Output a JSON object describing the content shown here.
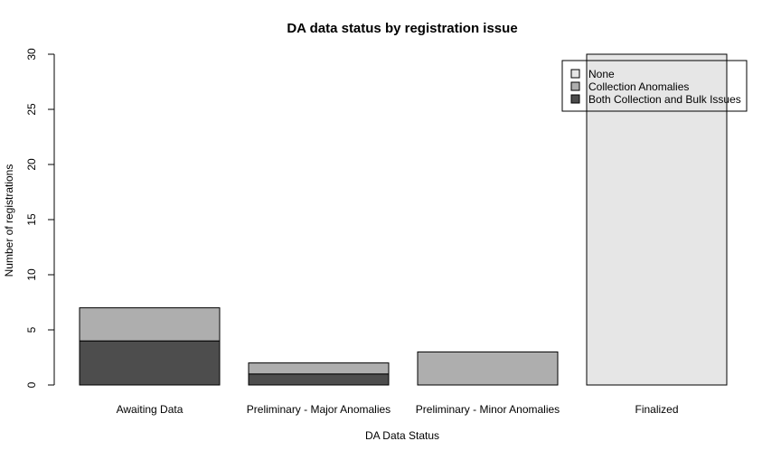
{
  "chart_data": {
    "type": "bar",
    "stacked": true,
    "title": "DA data status by registration issue",
    "xlabel": "DA Data Status",
    "ylabel": "Number of registrations",
    "categories": [
      "Awaiting Data",
      "Preliminary - Major Anomalies",
      "Preliminary - Minor Anomalies",
      "Finalized"
    ],
    "series": [
      {
        "name": "Both Collection and Bulk Issues",
        "color": "#4d4d4d",
        "values": [
          4,
          1,
          0,
          0
        ]
      },
      {
        "name": "Collection Anomalies",
        "color": "#aeaeae",
        "values": [
          3,
          1,
          3,
          0
        ]
      },
      {
        "name": "None",
        "color": "#e6e6e6",
        "values": [
          0,
          0,
          0,
          30
        ]
      }
    ],
    "ylim": [
      0,
      30
    ],
    "yticks": [
      0,
      5,
      10,
      15,
      20,
      25,
      30
    ],
    "legend": {
      "position": "top-right",
      "entries": [
        "None",
        "Collection Anomalies",
        "Both Collection and Bulk Issues"
      ]
    },
    "grid": false
  }
}
